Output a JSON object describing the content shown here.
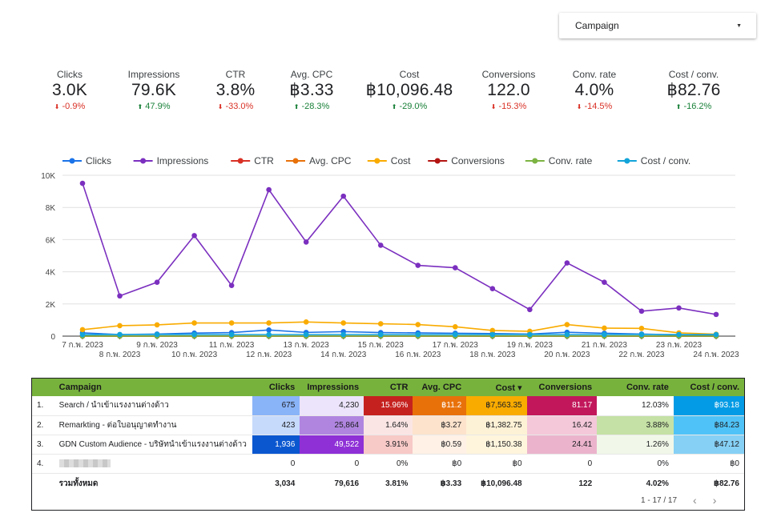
{
  "filter": {
    "label": "Campaign"
  },
  "kpis": [
    {
      "label": "Clicks",
      "value": "3.0K",
      "change": "-0.9%",
      "dir": "down"
    },
    {
      "label": "Impressions",
      "value": "79.6K",
      "change": "47.9%",
      "dir": "up"
    },
    {
      "label": "CTR",
      "value": "3.8%",
      "change": "-33.0%",
      "dir": "down"
    },
    {
      "label": "Avg. CPC",
      "value": "฿3.33",
      "change": "-28.3%",
      "dir": "up"
    },
    {
      "label": "Cost",
      "value": "฿10,096.48",
      "change": "-29.0%",
      "dir": "up"
    },
    {
      "label": "Conversions",
      "value": "122.0",
      "change": "-15.3%",
      "dir": "down"
    },
    {
      "label": "Conv. rate",
      "value": "4.0%",
      "change": "-14.5%",
      "dir": "down"
    },
    {
      "label": "Cost / conv.",
      "value": "฿82.76",
      "change": "-16.2%",
      "dir": "up"
    }
  ],
  "chart_data": {
    "type": "line",
    "x": [
      "7 ก.พ. 2023",
      "8 ก.พ. 2023",
      "9 ก.พ. 2023",
      "10 ก.พ. 2023",
      "11 ก.พ. 2023",
      "12 ก.พ. 2023",
      "13 ก.พ. 2023",
      "14 ก.พ. 2023",
      "15 ก.พ. 2023",
      "16 ก.พ. 2023",
      "17 ก.พ. 2023",
      "18 ก.พ. 2023",
      "19 ก.พ. 2023",
      "20 ก.พ. 2023",
      "21 ก.พ. 2023",
      "22 ก.พ. 2023",
      "23 ก.พ. 2023",
      "24 ก.พ. 2023"
    ],
    "yticks": [
      "0",
      "2K",
      "4K",
      "6K",
      "8K",
      "10K"
    ],
    "ylim": [
      0,
      10000
    ],
    "series": [
      {
        "name": "Clicks",
        "color": "#1a73e8",
        "values": [
          200,
          100,
          130,
          190,
          220,
          380,
          230,
          280,
          220,
          200,
          180,
          160,
          130,
          240,
          180,
          130,
          80,
          50
        ]
      },
      {
        "name": "Impressions",
        "color": "#7b2fbf",
        "values": [
          9500,
          2500,
          3350,
          6250,
          3150,
          9100,
          5850,
          8700,
          5650,
          4400,
          4250,
          2950,
          1650,
          4550,
          3350,
          1550,
          1750,
          1350
        ]
      },
      {
        "name": "CTR",
        "color": "#d93025",
        "values": [
          5,
          5,
          5,
          5,
          5,
          5,
          5,
          5,
          5,
          5,
          5,
          5,
          5,
          5,
          5,
          5,
          5,
          5
        ]
      },
      {
        "name": "Avg. CPC",
        "color": "#e8710a",
        "values": [
          3,
          3,
          3,
          3,
          3,
          3,
          3,
          3,
          3,
          3,
          3,
          3,
          3,
          3,
          3,
          3,
          3,
          3
        ]
      },
      {
        "name": "Cost",
        "color": "#f9ab00",
        "values": [
          400,
          650,
          700,
          820,
          820,
          820,
          880,
          820,
          770,
          720,
          580,
          350,
          300,
          720,
          500,
          480,
          200,
          120
        ]
      },
      {
        "name": "Conversions",
        "color": "#b31412",
        "values": [
          10,
          8,
          8,
          6,
          7,
          6,
          7,
          7,
          5,
          6,
          7,
          5,
          6,
          5,
          6,
          5,
          4,
          4
        ]
      },
      {
        "name": "Conv. rate",
        "color": "#7cb342",
        "values": [
          4,
          4,
          4,
          4,
          4,
          4,
          4,
          4,
          4,
          4,
          4,
          4,
          4,
          4,
          4,
          4,
          4,
          4
        ]
      },
      {
        "name": "Cost / conv.",
        "color": "#12a4d9",
        "values": [
          90,
          100,
          100,
          100,
          100,
          100,
          100,
          100,
          100,
          100,
          100,
          100,
          100,
          100,
          100,
          100,
          100,
          100
        ]
      }
    ]
  },
  "table": {
    "headers": [
      "Campaign",
      "Clicks",
      "Impressions",
      "CTR",
      "Avg. CPC",
      "Cost ▾",
      "Conversions",
      "Conv. rate",
      "Cost / conv."
    ],
    "rows": [
      {
        "idx": "1.",
        "name": "Search / นำเข้าแรงงานต่างด้าว",
        "cells": [
          "675",
          "4,230",
          "15.96%",
          "฿11.2",
          "฿7,563.35",
          "81.17",
          "12.03%",
          "฿93.18"
        ],
        "colors": [
          "#8ab4f8",
          "#ece4fa",
          "#c5221f",
          "#e8710a",
          "#f9ab00",
          "#c2185b",
          "#ffffff",
          "#039be5"
        ],
        "light": [
          false,
          false,
          true,
          true,
          false,
          true,
          false,
          true
        ]
      },
      {
        "idx": "2.",
        "name": "Remarkting - ต่อใบอนุญาตทำงาน",
        "cells": [
          "423",
          "25,864",
          "1.64%",
          "฿3.27",
          "฿1,382.75",
          "16.42",
          "3.88%",
          "฿84.23"
        ],
        "colors": [
          "#c6dafc",
          "#b085e0",
          "#fbe5e4",
          "#fde3cc",
          "#fef2d6",
          "#f4c8d9",
          "#c5e1a5",
          "#4fc3f7"
        ],
        "light": [
          false,
          false,
          false,
          false,
          false,
          false,
          false,
          false
        ]
      },
      {
        "idx": "3.",
        "name": "GDN Custom Audience - บริษัทนำเข้าแรงงานต่างด้าว",
        "cells": [
          "1,936",
          "49,522",
          "3.91%",
          "฿0.59",
          "฿1,150.38",
          "24.41",
          "1.26%",
          "฿47.12"
        ],
        "colors": [
          "#0b57d0",
          "#8e30d6",
          "#f7c9c7",
          "#fff1e5",
          "#fff5dd",
          "#ebb4cc",
          "#f1f8e9",
          "#86d0f5"
        ],
        "light": [
          true,
          true,
          false,
          false,
          false,
          false,
          false,
          false
        ]
      },
      {
        "idx": "4.",
        "name": "",
        "cells": [
          "0",
          "0",
          "0%",
          "฿0",
          "฿0",
          "0",
          "0%",
          "฿0"
        ],
        "colors": [
          "#ffffff",
          "#ffffff",
          "#ffffff",
          "#ffffff",
          "#ffffff",
          "#ffffff",
          "#ffffff",
          "#ffffff"
        ],
        "light": [
          false,
          false,
          false,
          false,
          false,
          false,
          false,
          false
        ]
      }
    ],
    "total": {
      "label": "รวมทั้งหมด",
      "cells": [
        "3,034",
        "79,616",
        "3.81%",
        "฿3.33",
        "฿10,096.48",
        "122",
        "4.02%",
        "฿82.76"
      ]
    },
    "pagination": "1 - 17 / 17"
  }
}
